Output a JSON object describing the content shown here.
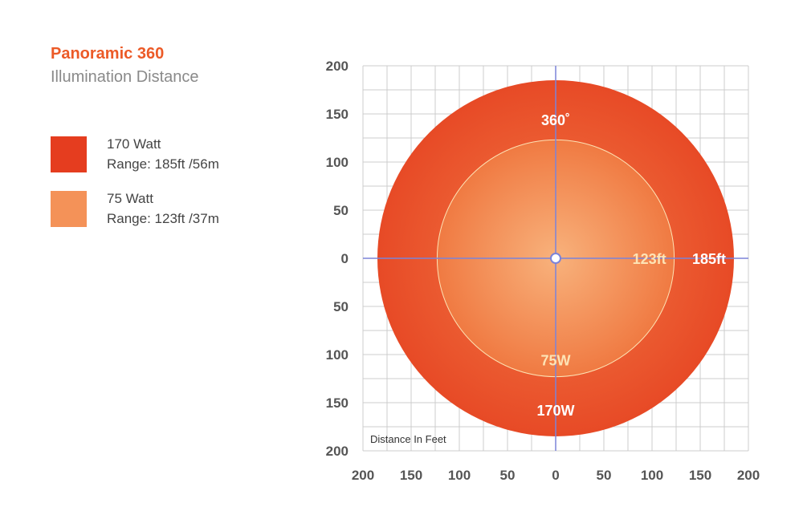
{
  "header": {
    "title": "Panoramic 360",
    "subtitle": "Illumination Distance"
  },
  "legend": [
    {
      "name": "170 Watt",
      "range": "Range: 185ft /56m",
      "color": "#e53d1f"
    },
    {
      "name": "75 Watt",
      "range": "Range: 123ft /37m",
      "color": "#f49258"
    }
  ],
  "colors": {
    "outer_edge": "#e74a26",
    "outer_center": "#f37a45",
    "inner_edge": "#f07a42",
    "inner_center": "#f8b27c",
    "grid": "#cccccc",
    "axis": "#7b83d9"
  },
  "chart_data": {
    "type": "area",
    "title": "",
    "xlabel": "",
    "ylabel": "",
    "xlim": [
      -200,
      200
    ],
    "ylim": [
      -200,
      200
    ],
    "grid": true,
    "x_ticks": [
      "200",
      "150",
      "100",
      "50",
      "0",
      "50",
      "100",
      "150",
      "200"
    ],
    "y_ticks": [
      "200",
      "150",
      "100",
      "50",
      "0",
      "50",
      "100",
      "150",
      "200"
    ],
    "series": [
      {
        "name": "170W",
        "radius": 185,
        "range_label": "185ft"
      },
      {
        "name": "75W",
        "radius": 123,
        "range_label": "123ft"
      }
    ],
    "annotations": {
      "angle": "360˚",
      "axis_note": "Distance In Feet"
    }
  }
}
